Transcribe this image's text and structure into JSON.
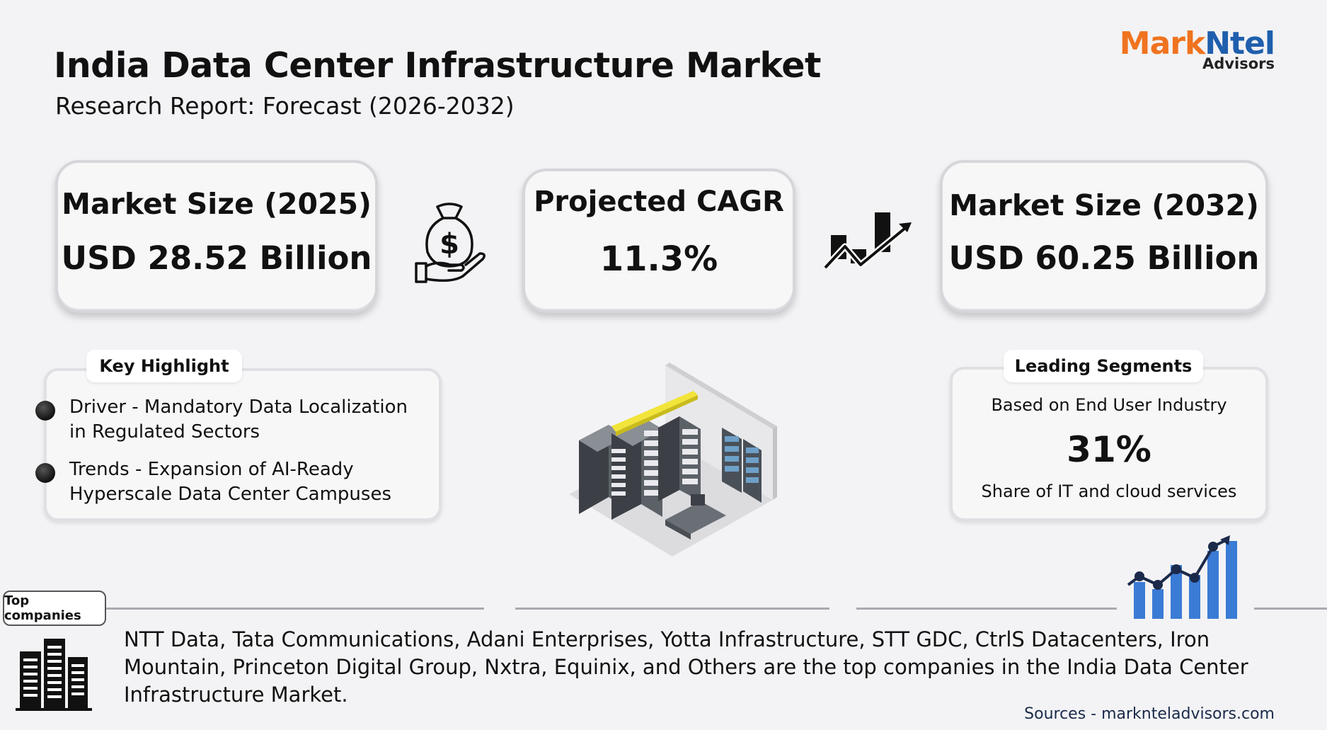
{
  "header": {
    "title": "India Data Center Infrastructure Market",
    "subtitle": "Research Report: Forecast (2026-2032)"
  },
  "logo": {
    "brand_part1": "Mark",
    "brand_part2": "Ntel",
    "sub": "Advisors",
    "colors": {
      "orange": "#f0731f",
      "blue": "#1f5fad"
    }
  },
  "stats": {
    "market_size_2025": {
      "label": "Market Size (2025)",
      "value": "USD 28.52 Billion"
    },
    "cagr": {
      "label": "Projected CAGR",
      "value": "11.3%"
    },
    "market_size_2032": {
      "label": "Market Size (2032)",
      "value": "USD 60.25 Billion"
    }
  },
  "icons": {
    "money": "money-bag-hand-icon",
    "growth": "growth-chart-arrow-icon",
    "datacenter": "data-center-room-illustration",
    "bars": "rising-bar-chart-icon",
    "buildings": "office-buildings-icon"
  },
  "key_highlight": {
    "tab": "Key Highlight",
    "items": [
      {
        "line1": "Driver - Mandatory Data Localization",
        "line2": "in Regulated Sectors"
      },
      {
        "line1": "Trends - Expansion of AI-Ready",
        "line2": "Hyperscale Data Center Campuses"
      }
    ]
  },
  "leading_segments": {
    "tab": "Leading Segments",
    "basis": "Based on End User Industry",
    "value": "31%",
    "desc": "Share of IT and cloud services"
  },
  "top_companies": {
    "tag": "Top companies",
    "text": "NTT Data, Tata Communications, Adani Enterprises, Yotta Infrastructure, STT GDC, CtrlS Datacenters, Iron Mountain, Princeton Digital Group, Nxtra, Equinix, and Others are the top companies in the India Data Center Infrastructure Market."
  },
  "sources": "Sources - marknteladvisors.com"
}
